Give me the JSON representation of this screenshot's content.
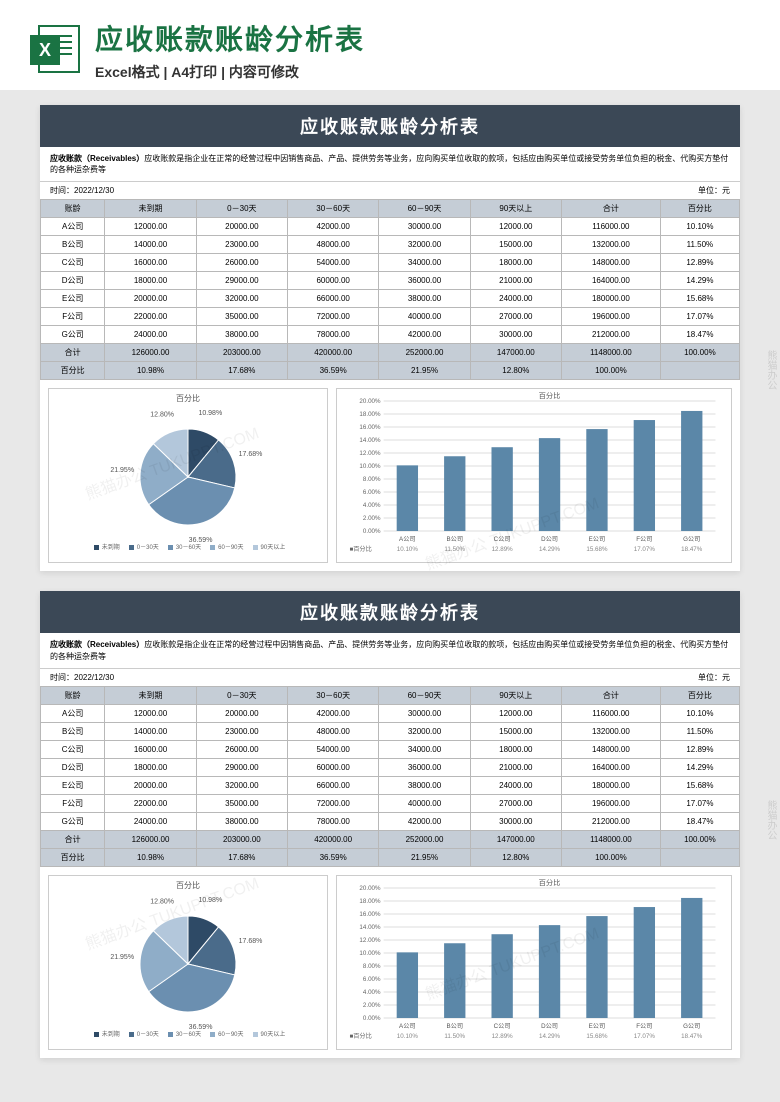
{
  "header": {
    "excel_x": "X",
    "title": "应收账款账龄分析表",
    "subtitle": "Excel格式 | A4打印 | 内容可修改"
  },
  "sheet": {
    "title": "应收账款账龄分析表",
    "desc_bold": "应收账款（Receivables）",
    "desc_text": "应收账款是指企业在正常的经营过程中因销售商品、产品、提供劳务等业务，应向购买单位收取的款项，包括应由购买单位或接受劳务单位负担的税金、代购买方垫付的各种运杂费等",
    "date_label": "时间：",
    "date_value": "2022/12/30",
    "unit_label": "单位：元",
    "columns": [
      "账龄",
      "未到期",
      "0－30天",
      "30－60天",
      "60－90天",
      "90天以上",
      "合计",
      "百分比"
    ],
    "rows": [
      [
        "A公司",
        "12000.00",
        "20000.00",
        "42000.00",
        "30000.00",
        "12000.00",
        "116000.00",
        "10.10%"
      ],
      [
        "B公司",
        "14000.00",
        "23000.00",
        "48000.00",
        "32000.00",
        "15000.00",
        "132000.00",
        "11.50%"
      ],
      [
        "C公司",
        "16000.00",
        "26000.00",
        "54000.00",
        "34000.00",
        "18000.00",
        "148000.00",
        "12.89%"
      ],
      [
        "D公司",
        "18000.00",
        "29000.00",
        "60000.00",
        "36000.00",
        "21000.00",
        "164000.00",
        "14.29%"
      ],
      [
        "E公司",
        "20000.00",
        "32000.00",
        "66000.00",
        "38000.00",
        "24000.00",
        "180000.00",
        "15.68%"
      ],
      [
        "F公司",
        "22000.00",
        "35000.00",
        "72000.00",
        "40000.00",
        "27000.00",
        "196000.00",
        "17.07%"
      ],
      [
        "G公司",
        "24000.00",
        "38000.00",
        "78000.00",
        "42000.00",
        "30000.00",
        "212000.00",
        "18.47%"
      ]
    ],
    "total_row": [
      "合计",
      "126000.00",
      "203000.00",
      "420000.00",
      "252000.00",
      "147000.00",
      "1148000.00",
      "100.00%"
    ],
    "pct_row": [
      "百分比",
      "10.98%",
      "17.68%",
      "36.59%",
      "21.95%",
      "12.80%",
      "100.00%",
      ""
    ]
  },
  "pie": {
    "title": "百分比",
    "slices": [
      {
        "label": "未到期",
        "pct": 10.98,
        "color": "#2e4a66",
        "disp": "10.98%"
      },
      {
        "label": "0－30天",
        "pct": 17.68,
        "color": "#4a6b8a",
        "disp": "17.68%"
      },
      {
        "label": "30－60天",
        "pct": 36.59,
        "color": "#6b8fb0",
        "disp": "36.59%"
      },
      {
        "label": "60－90天",
        "pct": 21.95,
        "color": "#8fadc8",
        "disp": "21.95%"
      },
      {
        "label": "90天以上",
        "pct": 12.8,
        "color": "#b3c7db",
        "disp": "12.80%"
      }
    ],
    "legend": "■ 未到期  ■ 0－30天  ■ 30－60天  ■ 60－90天  ■ 90天以上"
  },
  "bar": {
    "title": "百分比",
    "ymax": 20,
    "ytick_step": 2,
    "ylabels": [
      "20.00%",
      "18.00%",
      "16.00%",
      "14.00%",
      "12.00%",
      "10.00%",
      "8.00%",
      "6.00%",
      "4.00%",
      "2.00%",
      "0.00%"
    ],
    "bars": [
      {
        "label": "A公司",
        "value": 10.1,
        "disp": "10.10%"
      },
      {
        "label": "B公司",
        "value": 11.5,
        "disp": "11.50%"
      },
      {
        "label": "C公司",
        "value": 12.89,
        "disp": "12.89%"
      },
      {
        "label": "D公司",
        "value": 14.29,
        "disp": "14.29%"
      },
      {
        "label": "E公司",
        "value": 15.68,
        "disp": "15.68%"
      },
      {
        "label": "F公司",
        "value": 17.07,
        "disp": "17.07%"
      },
      {
        "label": "G公司",
        "value": 18.47,
        "disp": "18.47%"
      }
    ],
    "bar_color": "#5b87a8",
    "grid_color": "#dcdcdc",
    "series_label": "■百分比"
  },
  "watermark": "熊猫办公 TUKUPPT.COM",
  "side_watermark": "熊猫办公"
}
